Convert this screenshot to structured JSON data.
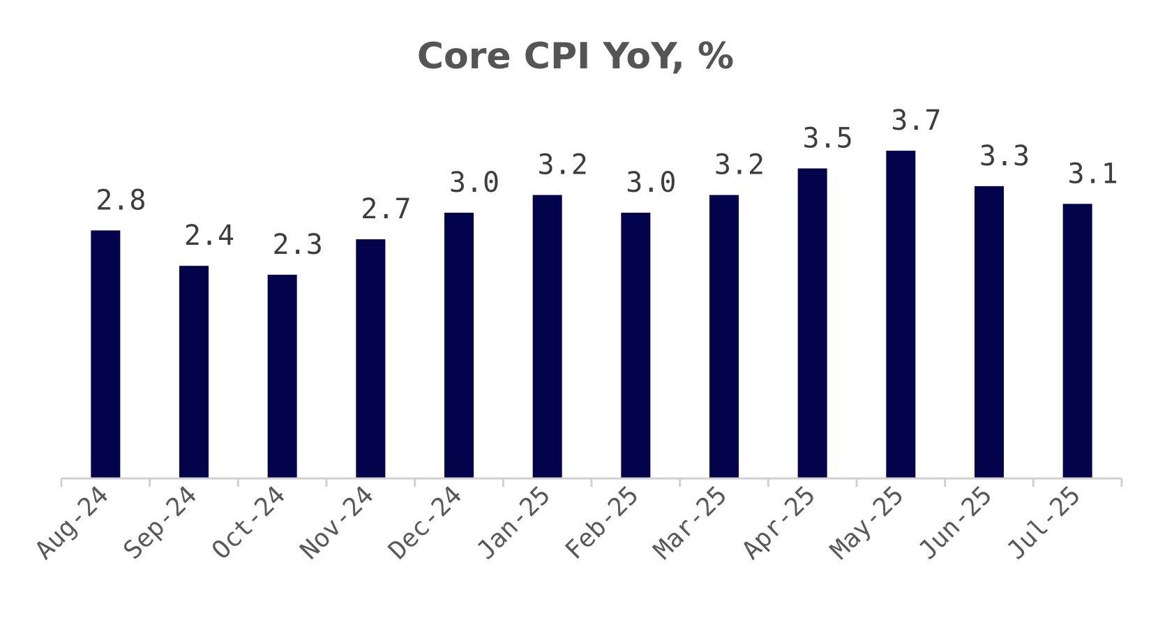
{
  "chart_data": {
    "type": "bar",
    "title": "Core CPI YoY, %",
    "xlabel": "",
    "ylabel": "",
    "categories": [
      "Aug-24",
      "Sep-24",
      "Oct-24",
      "Nov-24",
      "Dec-24",
      "Jan-25",
      "Feb-25",
      "Mar-25",
      "Apr-25",
      "May-25",
      "Jun-25",
      "Jul-25"
    ],
    "values": [
      2.8,
      2.4,
      2.3,
      2.7,
      3.0,
      3.2,
      3.0,
      3.2,
      3.5,
      3.7,
      3.3,
      3.1
    ],
    "data_labels": [
      "2.8",
      "2.4",
      "2.3",
      "2.7",
      "3.0",
      "3.2",
      "3.0",
      "3.2",
      "3.5",
      "3.7",
      "3.3",
      "3.1"
    ],
    "ylim": [
      0,
      4.5
    ],
    "grid": false,
    "legend": "none",
    "bar_color": "#02034a",
    "axis_color": "#d0d0d0"
  }
}
